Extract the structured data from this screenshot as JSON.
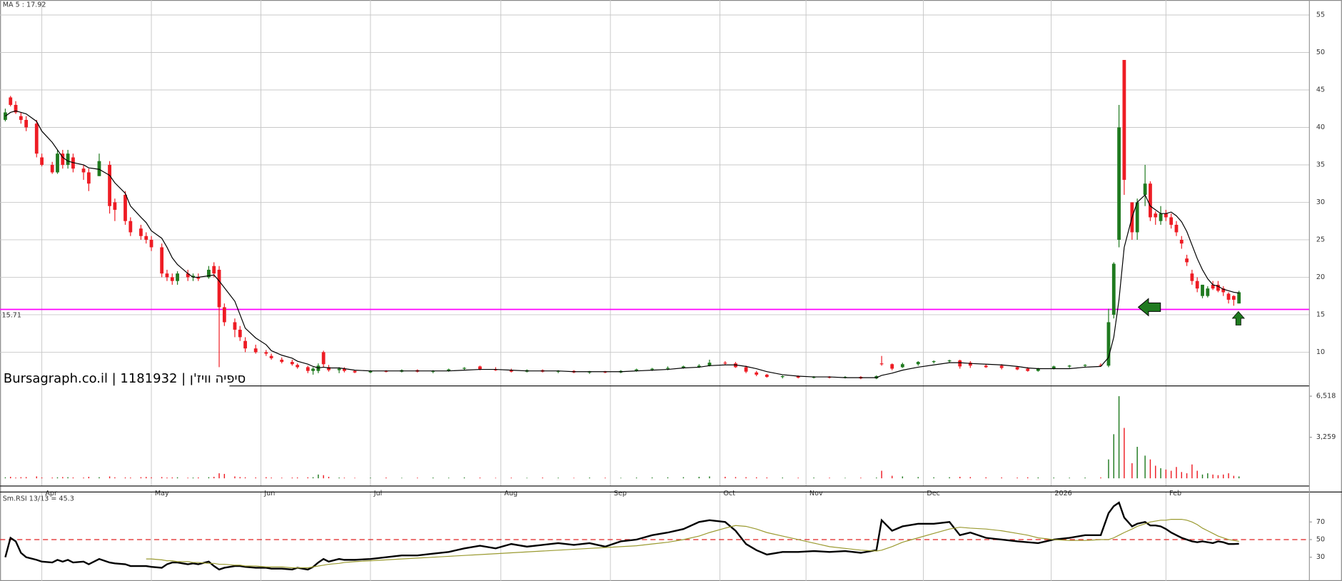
{
  "chart_data": [
    {
      "type": "candlestick",
      "legend_text": "MA 5 : 17.92",
      "watermark": "Bursagraph.co.il | 1181932 | סיפיה וויז'ן",
      "x": [
        0,
        1,
        2,
        3,
        4,
        6,
        7,
        9,
        10,
        11,
        12,
        13,
        15,
        16,
        18,
        20,
        21,
        23,
        24,
        26,
        27,
        28,
        30,
        31,
        32,
        33,
        35,
        36,
        37,
        39,
        40,
        41,
        42,
        44,
        45,
        46,
        48,
        50,
        51,
        53,
        55,
        56,
        58,
        59,
        60,
        61,
        62,
        64,
        65,
        67,
        70,
        73,
        76,
        79,
        82,
        85,
        88,
        91,
        94,
        97,
        100,
        103,
        106,
        109,
        112,
        115,
        118,
        121,
        124,
        127,
        130,
        133,
        135,
        138,
        140,
        142,
        144,
        146,
        149,
        152,
        155,
        158,
        161,
        164,
        167,
        168,
        170,
        172,
        175,
        178,
        181,
        183,
        185,
        188,
        191,
        194,
        196,
        198,
        201,
        204,
        207,
        210,
        211.5,
        212.5,
        213.5,
        214.5,
        216,
        217,
        218.5,
        219.5,
        220.5,
        221.5,
        222.5,
        223.5,
        224.5,
        225.5,
        226.5,
        227.5,
        228.5,
        229.5,
        230.5,
        231.5,
        232.5,
        233.5,
        234.5,
        235.5,
        236.5
      ],
      "open": [
        41,
        44,
        43,
        41.5,
        41,
        40.5,
        36,
        35,
        34,
        36.5,
        35,
        36,
        34.5,
        34,
        33.5,
        35,
        30,
        31,
        27.5,
        26.5,
        25.5,
        25,
        24,
        20.5,
        20,
        19.5,
        20.5,
        20,
        20,
        20,
        21.5,
        21,
        16,
        14,
        13,
        11.5,
        10.5,
        10,
        9.5,
        9,
        8.7,
        8.3,
        8,
        7.5,
        7.5,
        10,
        8,
        7.6,
        7.8,
        7.5,
        7.3,
        7.5,
        7.4,
        7.6,
        7.4,
        7.5,
        7.8,
        8.1,
        7.7,
        7.6,
        7.4,
        7.6,
        7.4,
        7.5,
        7.3,
        7.4,
        7.3,
        7.5,
        7.7,
        7.8,
        7.9,
        8,
        8.2,
        8.6,
        8.5,
        8,
        7.3,
        7,
        6.7,
        6.8,
        6.6,
        6.7,
        6.6,
        6.7,
        6.5,
        8.5,
        8.4,
        8,
        8.4,
        8.7,
        8.8,
        8.9,
        8.6,
        8.2,
        8.2,
        8,
        7.8,
        7.5,
        7.8,
        8.1,
        8.2,
        8.3,
        8.2,
        15,
        25,
        49,
        30,
        26,
        31,
        32.5,
        28.5,
        27.5,
        28.5,
        28,
        27,
        25,
        22.5,
        20.5,
        19.5,
        17.5,
        17.5,
        19,
        19,
        18.5,
        17.8,
        17.5,
        16.5
      ],
      "high": [
        42.5,
        44.2,
        43.5,
        42,
        41.5,
        41,
        36.5,
        35.4,
        37,
        37,
        37,
        36.5,
        35,
        34.5,
        36.5,
        35.5,
        30.5,
        31.5,
        28,
        27,
        26,
        25.5,
        24.5,
        21,
        20.5,
        20.8,
        21,
        20.5,
        20.5,
        21.5,
        22,
        21.5,
        16.5,
        14.5,
        13.5,
        12,
        11,
        10.3,
        9.8,
        9.3,
        9,
        8.5,
        8.2,
        8,
        8.5,
        10.2,
        8.3,
        8,
        8,
        7.6,
        7.6,
        7.6,
        7.7,
        7.7,
        7.6,
        7.8,
        8,
        8.2,
        8,
        7.8,
        7.7,
        7.7,
        7.6,
        7.6,
        7.5,
        7.5,
        7.6,
        7.8,
        7.9,
        8.1,
        8.2,
        8.4,
        9,
        8.8,
        8.7,
        8.2,
        7.5,
        7.1,
        6.9,
        6.9,
        6.8,
        6.8,
        6.8,
        6.8,
        6.9,
        9.5,
        8.5,
        8.6,
        8.8,
        8.9,
        9,
        9,
        8.8,
        8.4,
        8.4,
        8.1,
        8,
        7.9,
        8.2,
        8.3,
        8.4,
        8.5,
        15.8,
        22,
        43,
        49,
        30,
        30.5,
        35,
        32.8,
        28.8,
        29.5,
        29,
        28.5,
        27.5,
        25.5,
        23,
        21,
        20,
        19,
        18.8,
        19.5,
        19.5,
        18.8,
        18,
        17.6,
        18.2
      ],
      "low": [
        40.8,
        42.8,
        41.8,
        40.5,
        39.5,
        36,
        34.8,
        33.8,
        33.8,
        34.5,
        34.5,
        34,
        33,
        31.5,
        33.5,
        28.5,
        27.5,
        27,
        25.5,
        25,
        24.5,
        23.5,
        20,
        19.5,
        19,
        19,
        19.5,
        19.5,
        19.5,
        19.8,
        20,
        8,
        13.5,
        12,
        11.5,
        10,
        9.8,
        9.5,
        9,
        8.5,
        8.2,
        7.8,
        7.2,
        7,
        7.2,
        8,
        7.4,
        7.2,
        7.3,
        7.2,
        7.2,
        7.3,
        7.3,
        7.3,
        7.2,
        7.4,
        7.6,
        7.6,
        7.5,
        7.3,
        7.3,
        7.3,
        7.2,
        7.2,
        7.1,
        7.2,
        7.2,
        7.4,
        7.5,
        7.6,
        7.8,
        7.9,
        8.1,
        8.3,
        7.9,
        7.2,
        6.8,
        6.6,
        6.5,
        6.5,
        6.5,
        6.5,
        6.5,
        6.4,
        6.4,
        8.2,
        7.6,
        7.9,
        8.2,
        8.5,
        8.6,
        7.8,
        7.9,
        7.9,
        7.7,
        7.6,
        7.4,
        7.4,
        7.7,
        7.9,
        8,
        8.1,
        8,
        14.5,
        24,
        31,
        25,
        25,
        29.5,
        27.5,
        27,
        27,
        27.5,
        26.5,
        25.5,
        23.8,
        21.5,
        19,
        18,
        17.2,
        17.3,
        18.3,
        18,
        17.5,
        16.5,
        16.2,
        16.5
      ],
      "close": [
        42,
        43,
        42,
        41,
        40,
        36.5,
        35,
        34,
        36.5,
        35,
        36.5,
        34.5,
        34,
        32.5,
        35.5,
        29.5,
        29,
        27.5,
        26,
        25.5,
        25,
        24,
        20.5,
        20,
        19.5,
        20.5,
        20,
        20.2,
        19.8,
        21,
        20.5,
        16,
        14,
        13,
        12,
        10.5,
        10,
        9.8,
        9.2,
        8.7,
        8.4,
        8,
        7.5,
        7.8,
        8.2,
        8.4,
        7.6,
        7.8,
        7.5,
        7.3,
        7.5,
        7.4,
        7.6,
        7.4,
        7.5,
        7.7,
        7.9,
        7.7,
        7.6,
        7.4,
        7.6,
        7.4,
        7.5,
        7.3,
        7.4,
        7.3,
        7.5,
        7.7,
        7.8,
        7.9,
        8.1,
        8.2,
        8.6,
        8.5,
        8,
        7.4,
        7,
        6.7,
        6.8,
        6.6,
        6.7,
        6.6,
        6.7,
        6.5,
        6.8,
        8.4,
        7.8,
        8.4,
        8.7,
        8.8,
        8.9,
        8.1,
        8.2,
        8,
        7.9,
        7.7,
        7.5,
        7.8,
        8.1,
        8.2,
        8.3,
        8.2,
        14,
        21.8,
        40,
        33,
        26,
        30,
        32.5,
        28,
        28,
        28.5,
        28,
        27,
        26,
        24.5,
        22,
        19.5,
        18.5,
        19,
        18.5,
        18.5,
        18.2,
        18,
        17,
        17,
        18
      ],
      "ma5": [
        41.5,
        42,
        42.2,
        42,
        41.8,
        40.8,
        39.5,
        38,
        37,
        36,
        35.5,
        35.3,
        35,
        34.6,
        34.4,
        33.6,
        32.6,
        31.2,
        29.5,
        28,
        27.3,
        26.2,
        25.2,
        24,
        22.6,
        21.7,
        20.5,
        20,
        20,
        20.2,
        20.3,
        19.5,
        18.6,
        16.8,
        15,
        13.2,
        11.9,
        11,
        10.2,
        9.6,
        9.2,
        8.8,
        8.4,
        8.1,
        7.9,
        8,
        7.9,
        7.9,
        7.8,
        7.6,
        7.5,
        7.5,
        7.5,
        7.5,
        7.5,
        7.5,
        7.6,
        7.7,
        7.7,
        7.6,
        7.5,
        7.5,
        7.5,
        7.4,
        7.4,
        7.4,
        7.4,
        7.5,
        7.6,
        7.7,
        7.9,
        8,
        8.2,
        8.3,
        8.3,
        8.1,
        7.8,
        7.4,
        7,
        6.8,
        6.7,
        6.7,
        6.6,
        6.6,
        6.6,
        6.9,
        7.2,
        7.6,
        8,
        8.3,
        8.6,
        8.6,
        8.5,
        8.4,
        8.3,
        8.1,
        7.9,
        7.8,
        7.8,
        7.8,
        8,
        8.1,
        9.3,
        12,
        17,
        24,
        28,
        30,
        31,
        29.5,
        29,
        28.5,
        28.5,
        28.7,
        28.2,
        27.4,
        26.1,
        24.3,
        22.5,
        21,
        19.8,
        19,
        18.8,
        18.4,
        18.2,
        18,
        17.9
      ],
      "up_color": "#1f7a1f",
      "down_color": "#ee1c24",
      "ma_color": "#000000",
      "xlim": [
        -1,
        250
      ],
      "ylim": [
        5.5,
        57
      ],
      "yticks": [
        10,
        15,
        20,
        25,
        30,
        35,
        40,
        45,
        50,
        55
      ],
      "xticks": [
        {
          "value": 7,
          "label": "Apr"
        },
        {
          "value": 28,
          "label": "May"
        },
        {
          "value": 49,
          "label": "Jun"
        },
        {
          "value": 70,
          "label": "Jul"
        },
        {
          "value": 95,
          "label": "Aug"
        },
        {
          "value": 116,
          "label": "Sep"
        },
        {
          "value": 137,
          "label": "Oct"
        },
        {
          "value": 153.5,
          "label": "Nov"
        },
        {
          "value": 176,
          "label": "Dec"
        },
        {
          "value": 200.5,
          "label": "2026"
        },
        {
          "value": 222.5,
          "label": "Feb"
        }
      ],
      "hline": {
        "value": 15.71,
        "label": "15.71",
        "color": "#ff00ff"
      },
      "grid": true
    },
    {
      "type": "bar",
      "values": [
        80,
        120,
        60,
        90,
        100,
        150,
        70,
        60,
        80,
        100,
        90,
        70,
        60,
        120,
        90,
        150,
        80,
        70,
        60,
        90,
        110,
        80,
        100,
        60,
        70,
        80,
        50,
        60,
        70,
        90,
        120,
        400,
        350,
        150,
        100,
        80,
        70,
        90,
        60,
        50,
        60,
        70,
        80,
        90,
        300,
        250,
        120,
        60,
        50,
        40,
        50,
        60,
        40,
        50,
        60,
        50,
        70,
        60,
        40,
        50,
        40,
        60,
        50,
        40,
        60,
        50,
        40,
        60,
        70,
        80,
        90,
        120,
        150,
        120,
        100,
        90,
        80,
        70,
        60,
        50,
        60,
        50,
        40,
        50,
        60,
        600,
        200,
        150,
        100,
        80,
        90,
        120,
        100,
        80,
        70,
        60,
        80,
        70,
        60,
        50,
        60,
        70,
        1500,
        3500,
        6518,
        4000,
        1200,
        2500,
        1800,
        1500,
        1000,
        800,
        700,
        600,
        900,
        500,
        400,
        1100,
        600,
        300,
        400,
        300,
        250,
        300,
        400,
        200,
        150
      ],
      "ylim": [
        0,
        7333
      ],
      "yticks": [
        {
          "value": 3259,
          "label": "3,259"
        },
        {
          "value": 6518,
          "label": "6,518"
        }
      ]
    },
    {
      "type": "line",
      "label": "Sm.RSI 13/13 = 45.3",
      "ylim": [
        3,
        104
      ],
      "yticks": [
        30,
        50,
        70
      ],
      "reference_line": 50,
      "reference_color": "#e02020",
      "series": [
        {
          "color": "#000000",
          "values": [
            30,
            52,
            48,
            35,
            30,
            27,
            25,
            24,
            27,
            25,
            27,
            24,
            25,
            22,
            28,
            24,
            23,
            22,
            20,
            20,
            20,
            19,
            18,
            22,
            24,
            24,
            22,
            23,
            22,
            25,
            20,
            16,
            18,
            20,
            20,
            19,
            18,
            18,
            17,
            17,
            16,
            18,
            16,
            19,
            24,
            28,
            25,
            28,
            27,
            27,
            28,
            30,
            32,
            32,
            34,
            36,
            40,
            43,
            40,
            45,
            42,
            44,
            46,
            44,
            46,
            42,
            48,
            50,
            55,
            58,
            62,
            70,
            72,
            70,
            60,
            45,
            38,
            33,
            36,
            36,
            37,
            36,
            37,
            35,
            38,
            72,
            60,
            65,
            68,
            68,
            70,
            55,
            58,
            52,
            50,
            48,
            47,
            46,
            50,
            52,
            55,
            55,
            80,
            88,
            92,
            75,
            65,
            68,
            70,
            66,
            66,
            65,
            62,
            58,
            55,
            52,
            50,
            48,
            47,
            48,
            47,
            46,
            48,
            47,
            45,
            45,
            45.3
          ]
        },
        {
          "color": "#9a9a30",
          "values": [
            null,
            null,
            null,
            null,
            null,
            null,
            null,
            null,
            null,
            null,
            null,
            null,
            null,
            null,
            null,
            null,
            null,
            null,
            null,
            null,
            28,
            28,
            27,
            26,
            26,
            25,
            25,
            24,
            24,
            23,
            23,
            22,
            22,
            21,
            21,
            20,
            20,
            19,
            19,
            19,
            18,
            18,
            18,
            19,
            20,
            21,
            22,
            23,
            24,
            25,
            26,
            27,
            28,
            29,
            30,
            31,
            32,
            33,
            34,
            35,
            36,
            37,
            38,
            39,
            40,
            41,
            42,
            43,
            45,
            47,
            50,
            54,
            58,
            63,
            66,
            65,
            62,
            58,
            54,
            50,
            46,
            42,
            40,
            38,
            37,
            38,
            42,
            47,
            52,
            57,
            62,
            64,
            63,
            62,
            60,
            57,
            55,
            52,
            50,
            49,
            49,
            50,
            50,
            52,
            55,
            58,
            62,
            65,
            68,
            70,
            71,
            72,
            72,
            73,
            73,
            73,
            72,
            70,
            67,
            63,
            60,
            57,
            54,
            52,
            50,
            49,
            48
          ]
        }
      ]
    }
  ]
}
